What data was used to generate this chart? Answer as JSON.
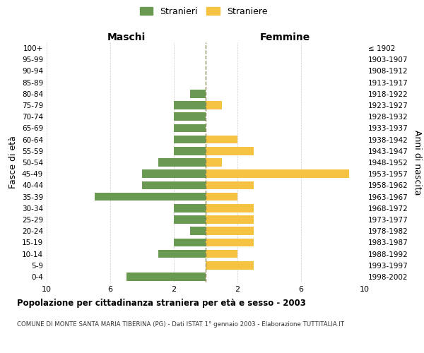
{
  "age_groups": [
    "100+",
    "95-99",
    "90-94",
    "85-89",
    "80-84",
    "75-79",
    "70-74",
    "65-69",
    "60-64",
    "55-59",
    "50-54",
    "45-49",
    "40-44",
    "35-39",
    "30-34",
    "25-29",
    "20-24",
    "15-19",
    "10-14",
    "5-9",
    "0-4"
  ],
  "birth_years": [
    "≤ 1902",
    "1903-1907",
    "1908-1912",
    "1913-1917",
    "1918-1922",
    "1923-1927",
    "1928-1932",
    "1933-1937",
    "1938-1942",
    "1943-1947",
    "1948-1952",
    "1953-1957",
    "1958-1962",
    "1963-1967",
    "1968-1972",
    "1973-1977",
    "1978-1982",
    "1983-1987",
    "1988-1992",
    "1993-1997",
    "1998-2002"
  ],
  "maschi": [
    0,
    0,
    0,
    0,
    1,
    2,
    2,
    2,
    2,
    2,
    3,
    4,
    4,
    7,
    2,
    2,
    1,
    2,
    3,
    0,
    5
  ],
  "femmine": [
    0,
    0,
    0,
    0,
    0,
    1,
    0,
    0,
    2,
    3,
    1,
    9,
    3,
    2,
    3,
    3,
    3,
    3,
    2,
    3,
    0
  ],
  "maschi_color": "#6a9a52",
  "femmine_color": "#f5c242",
  "center_line_color": "#8a8a5a",
  "background_color": "#ffffff",
  "grid_color": "#cccccc",
  "title": "Popolazione per cittadinanza straniera per età e sesso - 2003",
  "subtitle": "COMUNE DI MONTE SANTA MARIA TIBERINA (PG) - Dati ISTAT 1° gennaio 2003 - Elaborazione TUTTITALIA.IT",
  "xlabel_maschi": "Maschi",
  "xlabel_femmine": "Femmine",
  "ylabel_left": "Fasce di età",
  "ylabel_right": "Anni di nascita",
  "legend_maschi": "Stranieri",
  "legend_femmine": "Straniere",
  "xlim": 10
}
